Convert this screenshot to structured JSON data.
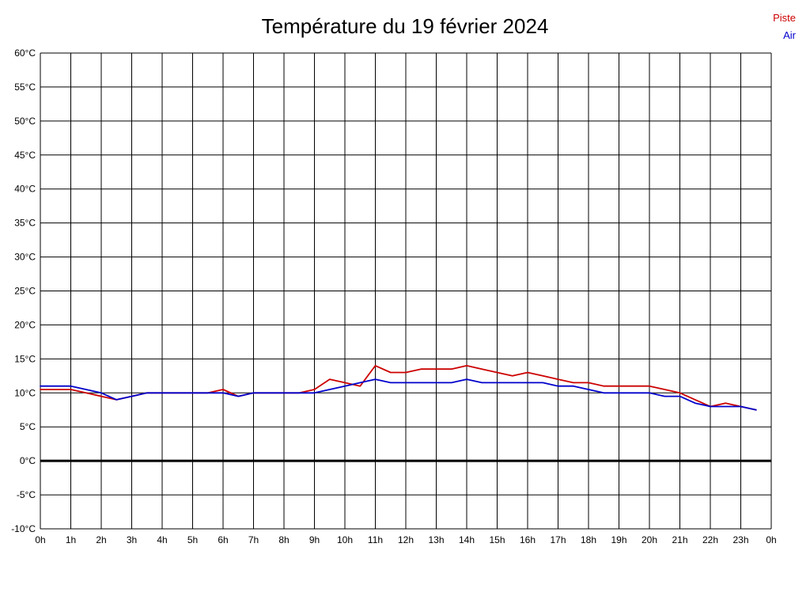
{
  "title": "Température du 19 février 2024",
  "legend": {
    "piste": {
      "label": "Piste",
      "color": "#cc0000"
    },
    "air": {
      "label": "Air",
      "color": "#0000cc"
    }
  },
  "chart_data": {
    "type": "line",
    "title": "Température du 19 février 2024",
    "xlabel": "",
    "ylabel": "",
    "ylim": [
      -10,
      60
    ],
    "y_tick_step": 5,
    "xlim_hours": [
      0,
      24
    ],
    "grid": true,
    "zero_line": {
      "value": 0,
      "color": "#000000",
      "width": 3
    },
    "y_ticks": [
      "60°C",
      "55°C",
      "50°C",
      "45°C",
      "40°C",
      "35°C",
      "30°C",
      "25°C",
      "20°C",
      "15°C",
      "10°C",
      "5°C",
      "0°C",
      "-5°C",
      "-10°C"
    ],
    "x_ticks": [
      "0h",
      "1h",
      "2h",
      "3h",
      "4h",
      "5h",
      "6h",
      "7h",
      "8h",
      "9h",
      "10h",
      "11h",
      "12h",
      "13h",
      "14h",
      "15h",
      "16h",
      "17h",
      "18h",
      "19h",
      "20h",
      "21h",
      "22h",
      "23h",
      "0h"
    ],
    "x": [
      0,
      0.5,
      1,
      1.5,
      2,
      2.5,
      3,
      3.5,
      4,
      4.5,
      5,
      5.5,
      6,
      6.5,
      7,
      7.5,
      8,
      8.5,
      9,
      9.5,
      10,
      10.5,
      11,
      11.5,
      12,
      12.5,
      13,
      13.5,
      14,
      14.5,
      15,
      15.5,
      16,
      16.5,
      17,
      17.5,
      18,
      18.5,
      19,
      19.5,
      20,
      20.5,
      21,
      21.5,
      22,
      22.5,
      23,
      23.5
    ],
    "series": [
      {
        "name": "Piste",
        "color": "#cc0000",
        "values": [
          10.5,
          10.5,
          10.5,
          10,
          9.5,
          9,
          9.5,
          10,
          10,
          10,
          10,
          10,
          10.5,
          9.5,
          10,
          10,
          10,
          10,
          10.5,
          12,
          11.5,
          11,
          14,
          13,
          13,
          13.5,
          13.5,
          13.5,
          14,
          13.5,
          13,
          12.5,
          13,
          12.5,
          12,
          11.5,
          11.5,
          11,
          11,
          11,
          11,
          10.5,
          10,
          9,
          8,
          8.5,
          8,
          7.5
        ]
      },
      {
        "name": "Air",
        "color": "#0000cc",
        "values": [
          11,
          11,
          11,
          10.5,
          10,
          9,
          9.5,
          10,
          10,
          10,
          10,
          10,
          10,
          9.5,
          10,
          10,
          10,
          10,
          10,
          10.5,
          11,
          11.5,
          12,
          11.5,
          11.5,
          11.5,
          11.5,
          11.5,
          12,
          11.5,
          11.5,
          11.5,
          11.5,
          11.5,
          11,
          11,
          10.5,
          10,
          10,
          10,
          10,
          9.5,
          9.5,
          8.5,
          8,
          8,
          8,
          7.5
        ]
      }
    ]
  }
}
